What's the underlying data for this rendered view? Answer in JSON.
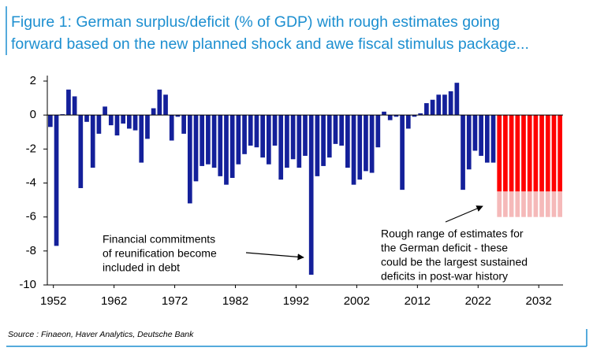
{
  "chart_data": {
    "type": "bar",
    "title": [
      "Figure 1: German surplus/deficit (% of GDP) with rough estimates going",
      "forward based on the new planned shock and awe fiscal stimulus package..."
    ],
    "x": [
      1951,
      1952,
      1953,
      1954,
      1955,
      1956,
      1957,
      1958,
      1959,
      1960,
      1961,
      1962,
      1963,
      1964,
      1965,
      1966,
      1967,
      1968,
      1969,
      1970,
      1971,
      1972,
      1973,
      1974,
      1975,
      1976,
      1977,
      1978,
      1979,
      1980,
      1981,
      1982,
      1983,
      1984,
      1985,
      1986,
      1987,
      1988,
      1989,
      1990,
      1991,
      1992,
      1993,
      1994,
      1995,
      1996,
      1997,
      1998,
      1999,
      2000,
      2001,
      2002,
      2003,
      2004,
      2005,
      2006,
      2007,
      2008,
      2009,
      2010,
      2011,
      2012,
      2013,
      2014,
      2015,
      2016,
      2017,
      2018,
      2019,
      2020,
      2021,
      2022,
      2023,
      2024,
      2025,
      2026,
      2027,
      2028,
      2029,
      2030,
      2031,
      2032,
      2033,
      2034,
      2035
    ],
    "series": [
      {
        "color": "#14209a",
        "values": [
          -0.7,
          -7.7,
          0.05,
          1.5,
          1.1,
          -4.3,
          -0.4,
          -3.1,
          -1.1,
          0.5,
          -0.6,
          -1.2,
          -0.5,
          -0.8,
          -0.9,
          -2.8,
          -1.4,
          0.4,
          1.5,
          1.2,
          -1.5,
          -0.1,
          -1.1,
          -5.2,
          -3.9,
          -3.0,
          -2.9,
          -3.1,
          -3.6,
          -4.1,
          -3.7,
          -2.9,
          -2.3,
          -1.8,
          -1.9,
          -2.5,
          -2.9,
          -1.8,
          -3.8,
          -3.1,
          -2.6,
          -3.1,
          -2.4,
          -9.4,
          -3.6,
          -3.0,
          -2.5,
          -1.7,
          -1.8,
          -3.1,
          -4.1,
          -3.8,
          -3.3,
          -3.4,
          -1.9,
          0.2,
          -0.3,
          -0.1,
          -4.4,
          -0.8,
          -0.1,
          0.1,
          0.7,
          0.9,
          1.2,
          1.2,
          1.4,
          1.9,
          -4.4,
          -3.2,
          -2.1,
          -2.4,
          -2.8,
          -2.8,
          null,
          null,
          null,
          null,
          null,
          null,
          null,
          null,
          null,
          null,
          null
        ]
      },
      {
        "color": "#ff0000",
        "values": [
          null,
          null,
          null,
          null,
          null,
          null,
          null,
          null,
          null,
          null,
          null,
          null,
          null,
          null,
          null,
          null,
          null,
          null,
          null,
          null,
          null,
          null,
          null,
          null,
          null,
          null,
          null,
          null,
          null,
          null,
          null,
          null,
          null,
          null,
          null,
          null,
          null,
          null,
          null,
          null,
          null,
          null,
          null,
          null,
          null,
          null,
          null,
          null,
          null,
          null,
          null,
          null,
          null,
          null,
          null,
          null,
          null,
          null,
          null,
          null,
          null,
          null,
          null,
          null,
          null,
          null,
          null,
          null,
          null,
          null,
          null,
          null,
          null,
          null,
          -4.5,
          -4.5,
          -4.5,
          -4.5,
          -4.5,
          -4.5,
          -4.5,
          -4.5,
          -4.5,
          -4.5,
          -4.5
        ]
      },
      {
        "color": "#f5b9b9",
        "values": [
          null,
          null,
          null,
          null,
          null,
          null,
          null,
          null,
          null,
          null,
          null,
          null,
          null,
          null,
          null,
          null,
          null,
          null,
          null,
          null,
          null,
          null,
          null,
          null,
          null,
          null,
          null,
          null,
          null,
          null,
          null,
          null,
          null,
          null,
          null,
          null,
          null,
          null,
          null,
          null,
          null,
          null,
          null,
          null,
          null,
          null,
          null,
          null,
          null,
          null,
          null,
          null,
          null,
          null,
          null,
          null,
          null,
          null,
          null,
          null,
          null,
          null,
          null,
          null,
          null,
          null,
          null,
          null,
          null,
          null,
          null,
          null,
          null,
          null,
          -6,
          -6,
          -6,
          -6,
          -6,
          -6,
          -6,
          -6,
          -6,
          -6,
          -6
        ]
      }
    ],
    "xlim": [
      1951,
      2036
    ],
    "xticks": [
      1952,
      1962,
      1972,
      1982,
      1992,
      2002,
      2012,
      2022,
      2032
    ],
    "ylim": [
      -10,
      2
    ],
    "yticks": [
      -10,
      -8,
      -6,
      -4,
      -2,
      0,
      2
    ],
    "annotations": [
      [
        "Financial commitments",
        "of reunification become",
        "included in debt"
      ],
      [
        "Rough range of estimates for",
        "the German deficit - these",
        "could be the largest sustained",
        "deficits in post-war history"
      ]
    ],
    "source": "Source : Finaeon, Haver Analytics, Deutsche Bank"
  }
}
